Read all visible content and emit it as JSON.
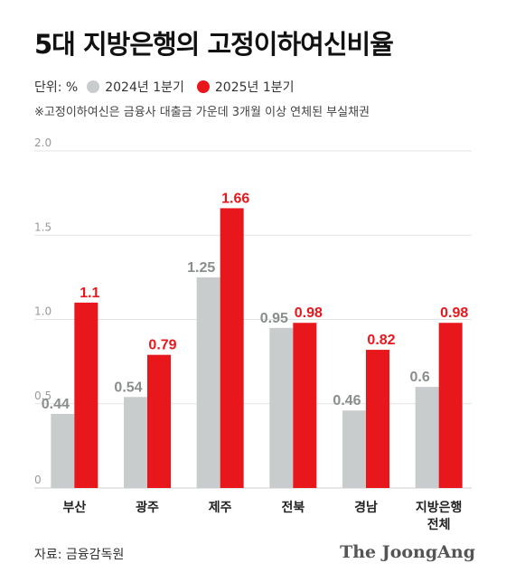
{
  "header": {
    "title": "5대 지방은행의 고정이하여신비율",
    "unit": "단위: %",
    "note": "※고정이하여신은 금융사 대출금 가운데 3개월 이상 연체된 부실채권"
  },
  "footer": {
    "source": "자료: 금융감독원",
    "brand": "The JoongAng"
  },
  "colors": {
    "series_2024": "#c9cccc",
    "series_2025": "#e8171c",
    "label_2024": "#8a8d8d",
    "label_2025": "#e8171c"
  },
  "chart_data": {
    "type": "bar",
    "categories": [
      [
        "부산"
      ],
      [
        "광주"
      ],
      [
        "제주"
      ],
      [
        "전북"
      ],
      [
        "경남"
      ],
      [
        "지방은행",
        "전체"
      ]
    ],
    "series": [
      {
        "name": "2024년 1분기",
        "values": [
          0.44,
          0.54,
          1.25,
          0.95,
          0.46,
          0.6
        ],
        "labels": [
          "0.44",
          "0.54",
          "1.25",
          "0.95",
          "0.46",
          "0.6"
        ]
      },
      {
        "name": "2025년 1분기",
        "values": [
          1.1,
          0.79,
          1.66,
          0.98,
          0.82,
          0.98
        ],
        "labels": [
          "1.1",
          "0.79",
          "1.66",
          "0.98",
          "0.82",
          "0.98"
        ]
      }
    ],
    "yticks": [
      "0",
      "0.5",
      "1.0",
      "1.5",
      "2.0"
    ],
    "ylim": [
      0,
      2.0
    ],
    "grid": true,
    "legend": "top-left"
  }
}
